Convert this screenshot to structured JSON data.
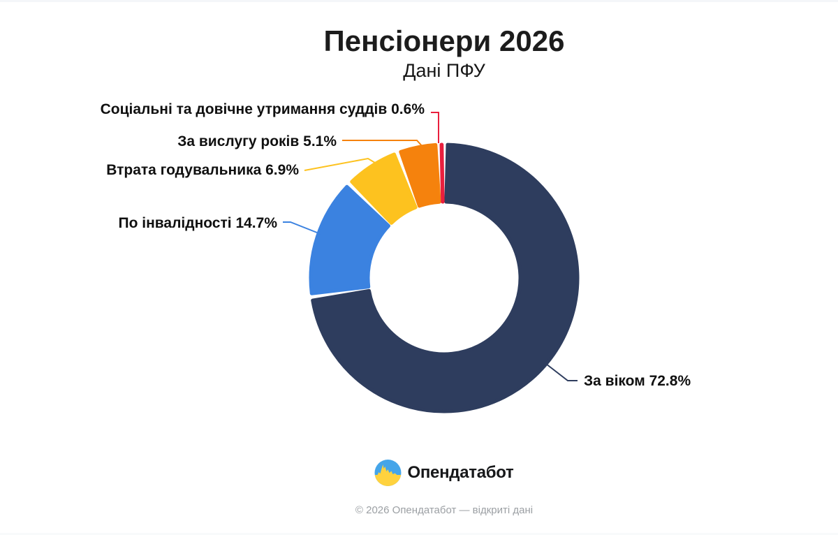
{
  "page": {
    "title": "Пенсіонери 2026",
    "subtitle": "Дані ПФУ"
  },
  "chart_data": {
    "type": "pie",
    "donut": true,
    "start_angle_deg": 0,
    "direction": "clockwise",
    "title": "Пенсіонери 2026",
    "subtitle": "Дані ПФУ",
    "unit": "%",
    "legend_position": "callout-labels",
    "segments": [
      {
        "label": "За віком",
        "value": 72.8,
        "display_label": "За віком 72.8%",
        "color": "#2e3d5e"
      },
      {
        "label": "По інвалідності",
        "value": 14.7,
        "display_label": "По інвалідності 14.7%",
        "color": "#3b82e0"
      },
      {
        "label": "Втрата годувальника",
        "value": 6.9,
        "display_label": "Втрата годувальника 6.9%",
        "color": "#fdc21f"
      },
      {
        "label": "За вислугу років",
        "value": 5.1,
        "display_label": "За вислугу років 5.1%",
        "color": "#f5820d"
      },
      {
        "label": "Соціальні та довічне утримання суддів",
        "value": 0.6,
        "display_label": "Соціальні та довічне утримання суддів 0.6%",
        "color": "#e91f3d"
      }
    ]
  },
  "footer": {
    "brand": "Опендатабот",
    "copyright": "© 2026 Опендатабот — відкриті дані"
  },
  "brand_colors": {
    "logo_blue": "#45a5e9",
    "logo_yellow": "#ffd23e"
  }
}
